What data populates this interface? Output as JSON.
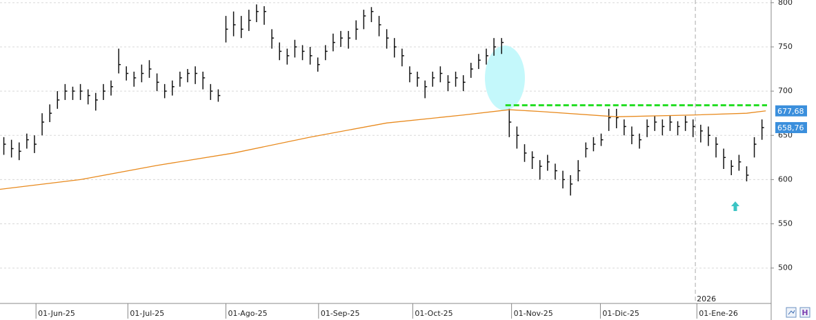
{
  "chart_data": {
    "type": "ohlc",
    "xlim": [
      -0.5,
      100.2
    ],
    "ylim": [
      460,
      803
    ],
    "yticks": [
      500,
      550,
      600,
      650,
      700,
      750,
      800
    ],
    "xticks": [
      {
        "value": 4.2,
        "label": "01-Jun-25"
      },
      {
        "value": 16.2,
        "label": "01-Jul-25"
      },
      {
        "value": 29,
        "label": "01-Ago-25"
      },
      {
        "value": 41.1,
        "label": "01-Sep-25"
      },
      {
        "value": 53.4,
        "label": "01-Oct-25"
      },
      {
        "value": 66.3,
        "label": "01-Nov-25"
      },
      {
        "value": 77.9,
        "label": "01-Dic-25"
      },
      {
        "value": 90.5,
        "label": "01-Ene-26"
      }
    ],
    "year_marker": {
      "x": 90.3,
      "label": "2026"
    },
    "grid": true,
    "bar_color": "#111111",
    "close": [
      640,
      635,
      632,
      645,
      640,
      665,
      675,
      690,
      700,
      700,
      700,
      695,
      690,
      700,
      705,
      730,
      720,
      715,
      720,
      725,
      710,
      700,
      705,
      715,
      720,
      720,
      715,
      700,
      695,
      770,
      775,
      770,
      780,
      790,
      790,
      760,
      745,
      740,
      750,
      745,
      740,
      730,
      745,
      755,
      760,
      760,
      770,
      785,
      790,
      775,
      760,
      750,
      740,
      720,
      715,
      705,
      715,
      720,
      710,
      715,
      710,
      725,
      735,
      740,
      750,
      755,
      665,
      650,
      630,
      625,
      615,
      620,
      610,
      600,
      595,
      610,
      635,
      640,
      645,
      670,
      670,
      660,
      650,
      645,
      660,
      665,
      660,
      665,
      660,
      665,
      660,
      655,
      650,
      640,
      625,
      615,
      620,
      605,
      640,
      658.76
    ],
    "high": [
      648,
      645,
      642,
      652,
      650,
      675,
      685,
      700,
      708,
      705,
      708,
      702,
      698,
      708,
      712,
      748,
      728,
      722,
      730,
      735,
      720,
      708,
      712,
      722,
      725,
      728,
      722,
      708,
      702,
      785,
      790,
      785,
      792,
      798,
      796,
      770,
      755,
      748,
      758,
      752,
      750,
      738,
      752,
      765,
      768,
      768,
      780,
      792,
      795,
      785,
      770,
      760,
      748,
      728,
      722,
      712,
      722,
      728,
      718,
      722,
      718,
      732,
      742,
      748,
      760,
      760,
      680,
      660,
      640,
      632,
      622,
      628,
      618,
      610,
      605,
      622,
      642,
      648,
      652,
      680,
      680,
      668,
      660,
      652,
      668,
      672,
      668,
      672,
      666,
      672,
      668,
      662,
      660,
      648,
      635,
      622,
      628,
      615,
      648,
      668
    ],
    "low": [
      628,
      625,
      622,
      635,
      630,
      650,
      665,
      680,
      690,
      690,
      690,
      685,
      678,
      690,
      695,
      720,
      712,
      705,
      710,
      715,
      700,
      692,
      695,
      705,
      710,
      708,
      702,
      690,
      688,
      755,
      762,
      760,
      768,
      778,
      775,
      748,
      735,
      730,
      738,
      735,
      730,
      722,
      735,
      745,
      750,
      748,
      758,
      770,
      778,
      762,
      748,
      738,
      728,
      710,
      705,
      692,
      705,
      710,
      700,
      705,
      700,
      715,
      725,
      730,
      740,
      742,
      648,
      635,
      620,
      612,
      600,
      610,
      600,
      590,
      582,
      598,
      625,
      632,
      638,
      655,
      658,
      650,
      640,
      635,
      648,
      655,
      650,
      655,
      650,
      655,
      648,
      642,
      638,
      625,
      612,
      605,
      610,
      598,
      625,
      645
    ],
    "moving_average": {
      "color": "#e8891c",
      "x": [
        -0.5,
        10,
        20,
        30,
        40,
        50,
        60,
        66,
        70,
        80,
        90,
        97,
        99.5
      ],
      "values": [
        589,
        600,
        616,
        630,
        648,
        664,
        673,
        679,
        677,
        671,
        673,
        675,
        677.68
      ]
    },
    "resistance": {
      "value": 684,
      "from": 65.5,
      "color": "#22dd22"
    },
    "price_tags": [
      {
        "value": 677.68,
        "label": "677,68"
      },
      {
        "value": 658.76,
        "label": "658,76"
      }
    ],
    "tag_color": "#3b8fdc"
  }
}
